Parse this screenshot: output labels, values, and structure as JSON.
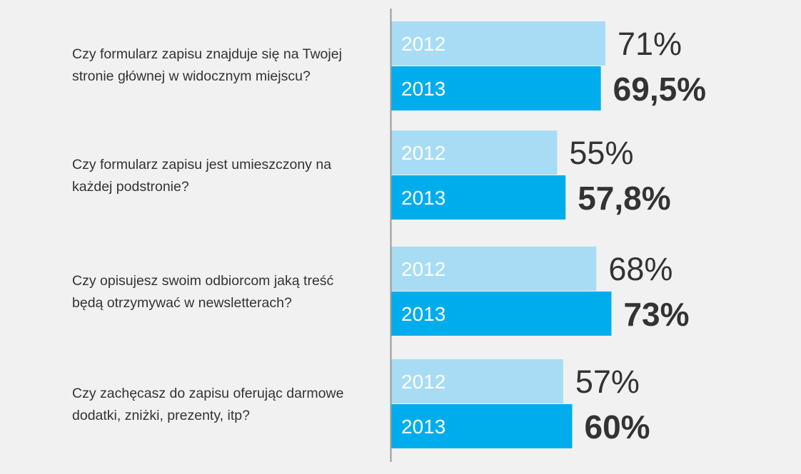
{
  "colors": {
    "background": "#f1f1f1",
    "bar_2012": "#a8dcf5",
    "bar_2013": "#00adec",
    "axis": "#999999",
    "text": "#333333",
    "bar_label": "#ffffff"
  },
  "chart_data": {
    "type": "bar",
    "orientation": "horizontal",
    "categories": [
      [
        "Czy formularz zapisu znajduje się na Twojej",
        "stronie głównej w widocznym miejscu?"
      ],
      [
        "Czy formularz zapisu jest umieszczony na",
        "każdej podstronie?"
      ],
      [
        "Czy opisujesz swoim odbiorcom jaką treść",
        "będą otrzymywać w newsletterach?"
      ],
      [
        "Czy zachęcasz do zapisu oferując darmowe",
        "dodatki, zniżki, prezenty, itp?"
      ]
    ],
    "series": [
      {
        "name": "2012",
        "values": [
          71,
          55,
          68,
          57
        ],
        "labels": [
          "71%",
          "55%",
          "68%",
          "57%"
        ],
        "color": "#a8dcf5"
      },
      {
        "name": "2013",
        "values": [
          69.5,
          57.8,
          73,
          60
        ],
        "labels": [
          "69,5%",
          "57,8%",
          "73%",
          "60%"
        ],
        "color": "#00adec"
      }
    ],
    "xlim": [
      0,
      100
    ],
    "grid": false,
    "legend": "none"
  }
}
